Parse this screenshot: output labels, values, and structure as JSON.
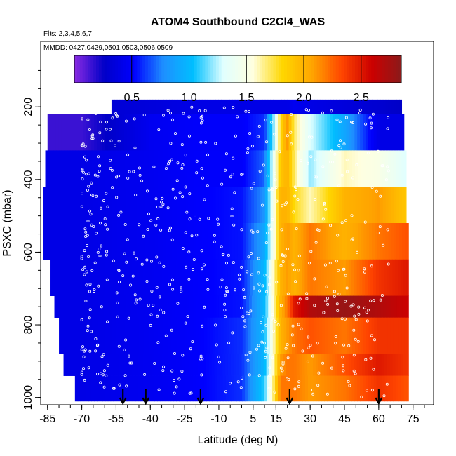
{
  "chart_data": {
    "type": "heatmap",
    "title": "ATOM4 Southbound C2Cl4_WAS",
    "subtitle_flights": "Flts: 2,3,4,5,6,7",
    "subtitle_dates": "MMDD: 0427,0429,0501,0503,0506,0509",
    "xlabel": "Latitude (deg N)",
    "ylabel": "PSXC (mbar)",
    "xlim": [
      -88,
      84
    ],
    "ylim": [
      1020,
      20
    ],
    "x_ticks": [
      -85,
      -70,
      -55,
      -40,
      -25,
      -10,
      5,
      15,
      30,
      45,
      60,
      75
    ],
    "y_ticks": [
      200,
      400,
      600,
      800,
      1000
    ],
    "colorbar": {
      "min": 0,
      "max": 2.85,
      "ticks": [
        0.5,
        1.0,
        1.5,
        2.0,
        2.5
      ],
      "tick_labels": [
        "0.5",
        "1.0",
        "1.5",
        "2.0",
        "2.5"
      ],
      "colors": [
        "#8a2be2",
        "#0000c8",
        "#0000ff",
        "#1e90ff",
        "#00bfff",
        "#e0ffff",
        "#ffffe0",
        "#ffd700",
        "#ffa500",
        "#ff4500",
        "#cc0000",
        "#8b1a1a"
      ]
    },
    "profile": {
      "lat_knots": [
        -70,
        -40,
        -20,
        0,
        10,
        14,
        17,
        20,
        23,
        30,
        45,
        60,
        72
      ],
      "bands": [
        {
          "p": [
            180,
            220
          ],
          "lon": [
            -57,
            70
          ],
          "v": [
            0.3,
            0.35,
            0.4,
            0.4,
            0.4,
            0.4,
            0.4,
            0.4,
            0.45,
            0.4,
            0.35,
            0.3,
            0.25
          ]
        },
        {
          "p": [
            220,
            320
          ],
          "lon": [
            -85,
            71
          ],
          "v": [
            0.15,
            0.45,
            0.5,
            0.5,
            0.6,
            1.2,
            1.8,
            2.1,
            1.7,
            1.3,
            0.9,
            0.4,
            0.4
          ]
        },
        {
          "p": [
            320,
            420
          ],
          "lon": [
            -86,
            72
          ],
          "v": [
            0.4,
            0.45,
            0.5,
            0.5,
            0.7,
            1.4,
            1.9,
            2.0,
            1.7,
            1.2,
            1.6,
            1.5,
            1.3
          ]
        },
        {
          "p": [
            420,
            520
          ],
          "lon": [
            -87,
            72
          ],
          "v": [
            0.4,
            0.45,
            0.5,
            0.55,
            0.8,
            1.5,
            2.0,
            2.0,
            1.8,
            1.6,
            2.0,
            2.1,
            1.9
          ]
        },
        {
          "p": [
            520,
            620
          ],
          "lon": [
            -87,
            73
          ],
          "v": [
            0.4,
            0.45,
            0.5,
            0.55,
            0.9,
            1.5,
            2.0,
            2.1,
            2.0,
            2.2,
            2.0,
            2.2,
            2.3
          ]
        },
        {
          "p": [
            620,
            720
          ],
          "lon": [
            -84,
            73
          ],
          "v": [
            0.4,
            0.45,
            0.5,
            0.55,
            1.0,
            1.6,
            2.0,
            2.1,
            2.0,
            2.2,
            2.1,
            2.4,
            2.5
          ]
        },
        {
          "p": [
            720,
            780
          ],
          "lon": [
            -82,
            73
          ],
          "v": [
            0.4,
            0.45,
            0.5,
            0.55,
            1.0,
            1.6,
            2.0,
            2.2,
            2.5,
            2.7,
            2.8,
            2.7,
            2.6
          ]
        },
        {
          "p": [
            780,
            880
          ],
          "lon": [
            -80,
            73
          ],
          "v": [
            0.4,
            0.45,
            0.5,
            0.6,
            1.0,
            1.6,
            2.0,
            2.1,
            2.2,
            2.3,
            2.2,
            2.4,
            2.4
          ]
        },
        {
          "p": [
            880,
            940
          ],
          "lon": [
            -78,
            73
          ],
          "v": [
            0.4,
            0.45,
            0.5,
            0.6,
            1.0,
            1.6,
            2.1,
            2.2,
            2.2,
            2.1,
            2.3,
            2.5,
            2.4
          ]
        },
        {
          "p": [
            940,
            1010
          ],
          "lon": [
            -73,
            73
          ],
          "v": [
            0.4,
            0.45,
            0.5,
            0.6,
            1.1,
            1.7,
            2.2,
            2.2,
            2.2,
            2.1,
            2.2,
            2.4,
            2.3
          ]
        }
      ]
    },
    "arrows_lat": [
      -52,
      -42,
      -18,
      21,
      60
    ]
  }
}
